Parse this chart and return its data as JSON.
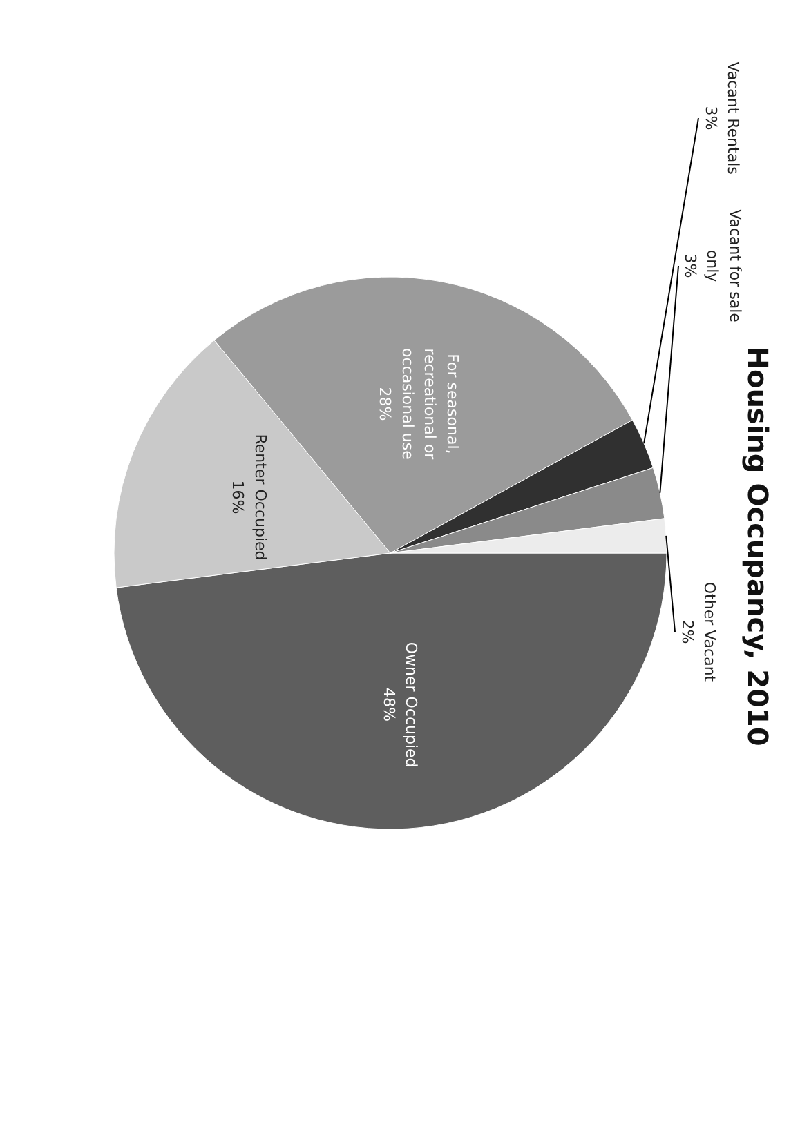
{
  "chart_data": {
    "type": "pie",
    "title": "Housing Occupancy, 2010",
    "categories": [
      "Owner Occupied",
      "Renter Occupied",
      "For seasonal, recreational or occasional use",
      "Vacant Rentals",
      "Vacant for sale only",
      "Other Vacant"
    ],
    "values": [
      48,
      16,
      28,
      3,
      3,
      2
    ],
    "value_labels": [
      "48%",
      "16%",
      "28%",
      "3%",
      "3%",
      "2%"
    ],
    "colors": [
      "#5e5e5e",
      "#c9c9c9",
      "#9b9b9b",
      "#303030",
      "#8a8a8a",
      "#ececec"
    ]
  }
}
